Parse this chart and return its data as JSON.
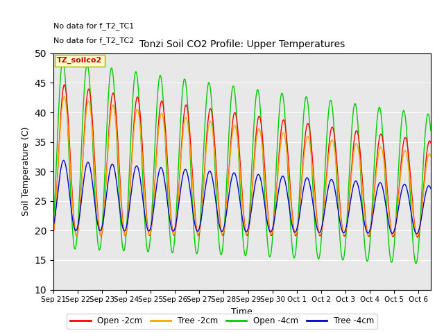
{
  "title": "Tonzi Soil CO2 Profile: Upper Temperatures",
  "xlabel": "Time",
  "ylabel": "Soil Temperature (C)",
  "ylim": [
    10,
    50
  ],
  "yticks": [
    10,
    15,
    20,
    25,
    30,
    35,
    40,
    45,
    50
  ],
  "colors": {
    "open_2cm": "#FF0000",
    "tree_2cm": "#FFA500",
    "open_4cm": "#00CC00",
    "tree_4cm": "#0000CC"
  },
  "legend_labels": [
    "Open -2cm",
    "Tree -2cm",
    "Open -4cm",
    "Tree -4cm"
  ],
  "annotation1": "No data for f_T2_TC1",
  "annotation2": "No data for f_T2_TC2",
  "legend_title": "TZ_soilco2",
  "bg_color": "#E8E8E8",
  "xtick_labels": [
    "Sep 21",
    "Sep 22",
    "Sep 23",
    "Sep 24",
    "Sep 25",
    "Sep 26",
    "Sep 27",
    "Sep 28",
    "Sep 29",
    "Sep 30",
    "Oct 1",
    "Oct 2",
    "Oct 3",
    "Oct 4",
    "Oct 5",
    "Oct 6"
  ],
  "n_days": 15.5
}
